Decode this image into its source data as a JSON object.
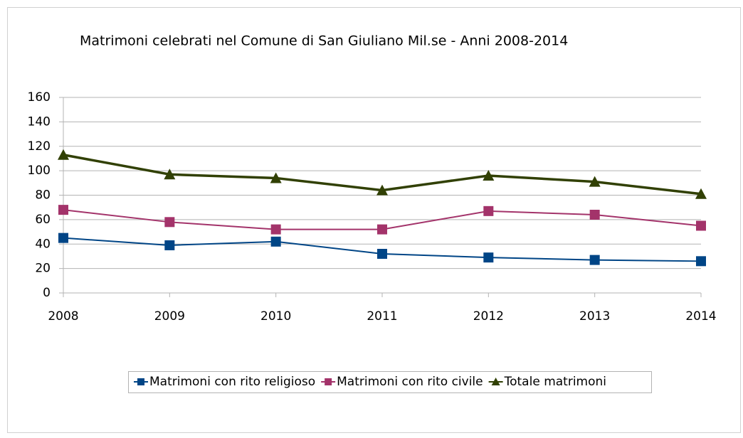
{
  "chart_data": {
    "type": "line",
    "title": "Matrimoni celebrati nel Comune di San Giuliano Mil.se - Anni 2008-2014",
    "categories": [
      "2008",
      "2009",
      "2010",
      "2011",
      "2012",
      "2013",
      "2014"
    ],
    "series": [
      {
        "name": "Matrimoni con rito religioso",
        "color": "#004586",
        "marker": "square",
        "values": [
          45,
          39,
          42,
          32,
          29,
          27,
          26
        ]
      },
      {
        "name": "Matrimoni con rito civile",
        "color": "#a3336a",
        "marker": "square",
        "values": [
          68,
          58,
          52,
          52,
          67,
          64,
          55
        ]
      },
      {
        "name": "Totale matrimoni",
        "color": "#314004",
        "marker": "triangle",
        "values": [
          113,
          97,
          94,
          84,
          96,
          91,
          81
        ]
      }
    ],
    "ylim": [
      0,
      160
    ],
    "yticks": [
      0,
      20,
      40,
      60,
      80,
      100,
      120,
      140,
      160
    ],
    "grid": true,
    "legend": "bottom"
  }
}
